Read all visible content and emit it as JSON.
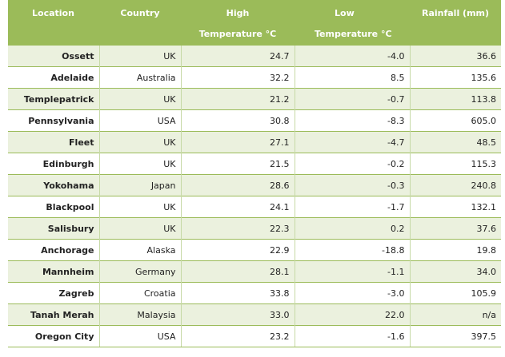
{
  "table": {
    "headers": {
      "location": "Location",
      "country": "Country",
      "high_line1": "High",
      "high_line2": "Temperature °C",
      "low_line1": "Low",
      "low_line2": "Temperature °C",
      "rainfall": "Rainfall (mm)"
    },
    "rows": [
      {
        "location": "Ossett",
        "country": "UK",
        "high": "24.7",
        "low": "-4.0",
        "rainfall": "36.6"
      },
      {
        "location": "Adelaide",
        "country": "Australia",
        "high": "32.2",
        "low": "8.5",
        "rainfall": "135.6"
      },
      {
        "location": "Templepatrick",
        "country": "UK",
        "high": "21.2",
        "low": "-0.7",
        "rainfall": "113.8"
      },
      {
        "location": "Pennsylvania",
        "country": "USA",
        "high": "30.8",
        "low": "-8.3",
        "rainfall": "605.0"
      },
      {
        "location": "Fleet",
        "country": "UK",
        "high": "27.1",
        "low": "-4.7",
        "rainfall": "48.5"
      },
      {
        "location": "Edinburgh",
        "country": "UK",
        "high": "21.5",
        "low": "-0.2",
        "rainfall": "115.3"
      },
      {
        "location": "Yokohama",
        "country": "Japan",
        "high": "28.6",
        "low": "-0.3",
        "rainfall": "240.8"
      },
      {
        "location": "Blackpool",
        "country": "UK",
        "high": "24.1",
        "low": "-1.7",
        "rainfall": "132.1"
      },
      {
        "location": "Salisbury",
        "country": "UK",
        "high": "22.3",
        "low": "0.2",
        "rainfall": "37.6"
      },
      {
        "location": "Anchorage",
        "country": "Alaska",
        "high": "22.9",
        "low": "-18.8",
        "rainfall": "19.8"
      },
      {
        "location": "Mannheim",
        "country": "Germany",
        "high": "28.1",
        "low": "-1.1",
        "rainfall": "34.0"
      },
      {
        "location": "Zagreb",
        "country": "Croatia",
        "high": "33.8",
        "low": "-3.0",
        "rainfall": "105.9"
      },
      {
        "location": "Tanah Merah",
        "country": "Malaysia",
        "high": "33.0",
        "low": "22.0",
        "rainfall": "n/a"
      },
      {
        "location": "Oregon City",
        "country": "USA",
        "high": "23.2",
        "low": "-1.6",
        "rainfall": "397.5"
      }
    ]
  },
  "colors": {
    "header_bg": "#9bbb59",
    "band_bg": "#ebf1de",
    "rule": "#9bbb59"
  }
}
